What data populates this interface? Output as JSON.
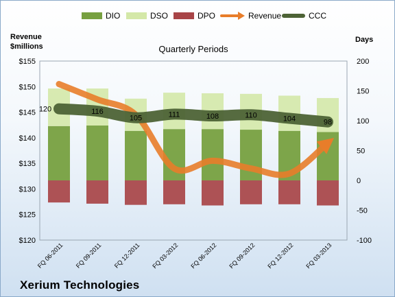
{
  "company": "Xerium Technologies",
  "chart_data": {
    "type": "bar",
    "title": "Quarterly Periods",
    "ylabel": "Revenue\n$millions",
    "y2label": "Days",
    "categories": [
      "FQ 06-2011",
      "FQ 09-2011",
      "FQ 12-2011",
      "FQ 03-2012",
      "FQ 06-2012",
      "FQ 09-2012",
      "FQ 12-2012",
      "FQ 03-2013"
    ],
    "ylim": [
      120,
      155
    ],
    "y_ticks": [
      "$120",
      "$125",
      "$130",
      "$135",
      "$140",
      "$145",
      "$150",
      "$155"
    ],
    "y2lim": [
      -100,
      200
    ],
    "y2_ticks": [
      "-100",
      "-50",
      "0",
      "50",
      "100",
      "150",
      "200"
    ],
    "legend_position": "top",
    "grid": false,
    "series": [
      {
        "name": "DIO",
        "axis": "days",
        "kind": "stacked-bar",
        "color": "#77a040",
        "values": [
          91,
          92,
          83,
          86,
          86,
          85,
          83,
          81
        ]
      },
      {
        "name": "DSO",
        "axis": "days",
        "kind": "stacked-bar",
        "color": "#d4e8a8",
        "values": [
          63,
          62,
          54,
          61,
          60,
          60,
          59,
          57
        ]
      },
      {
        "name": "DPO",
        "axis": "days",
        "kind": "stacked-bar",
        "color": "#a84447",
        "values": [
          -37,
          -39,
          -41,
          -40,
          -42,
          -40,
          -40,
          -42
        ]
      },
      {
        "name": "Revenue",
        "axis": "revenue",
        "kind": "line",
        "color": "#e87d2a",
        "values": [
          150.5,
          147.5,
          144.5,
          134.0,
          135.5,
          134.0,
          133.0,
          139.0
        ]
      },
      {
        "name": "CCC",
        "axis": "days",
        "kind": "line",
        "color": "#4d6336",
        "values": [
          120,
          116,
          105,
          111,
          108,
          110,
          104,
          98
        ],
        "labels": [
          "120",
          "116",
          "105",
          "111",
          "108",
          "110",
          "104",
          "98"
        ]
      }
    ]
  }
}
